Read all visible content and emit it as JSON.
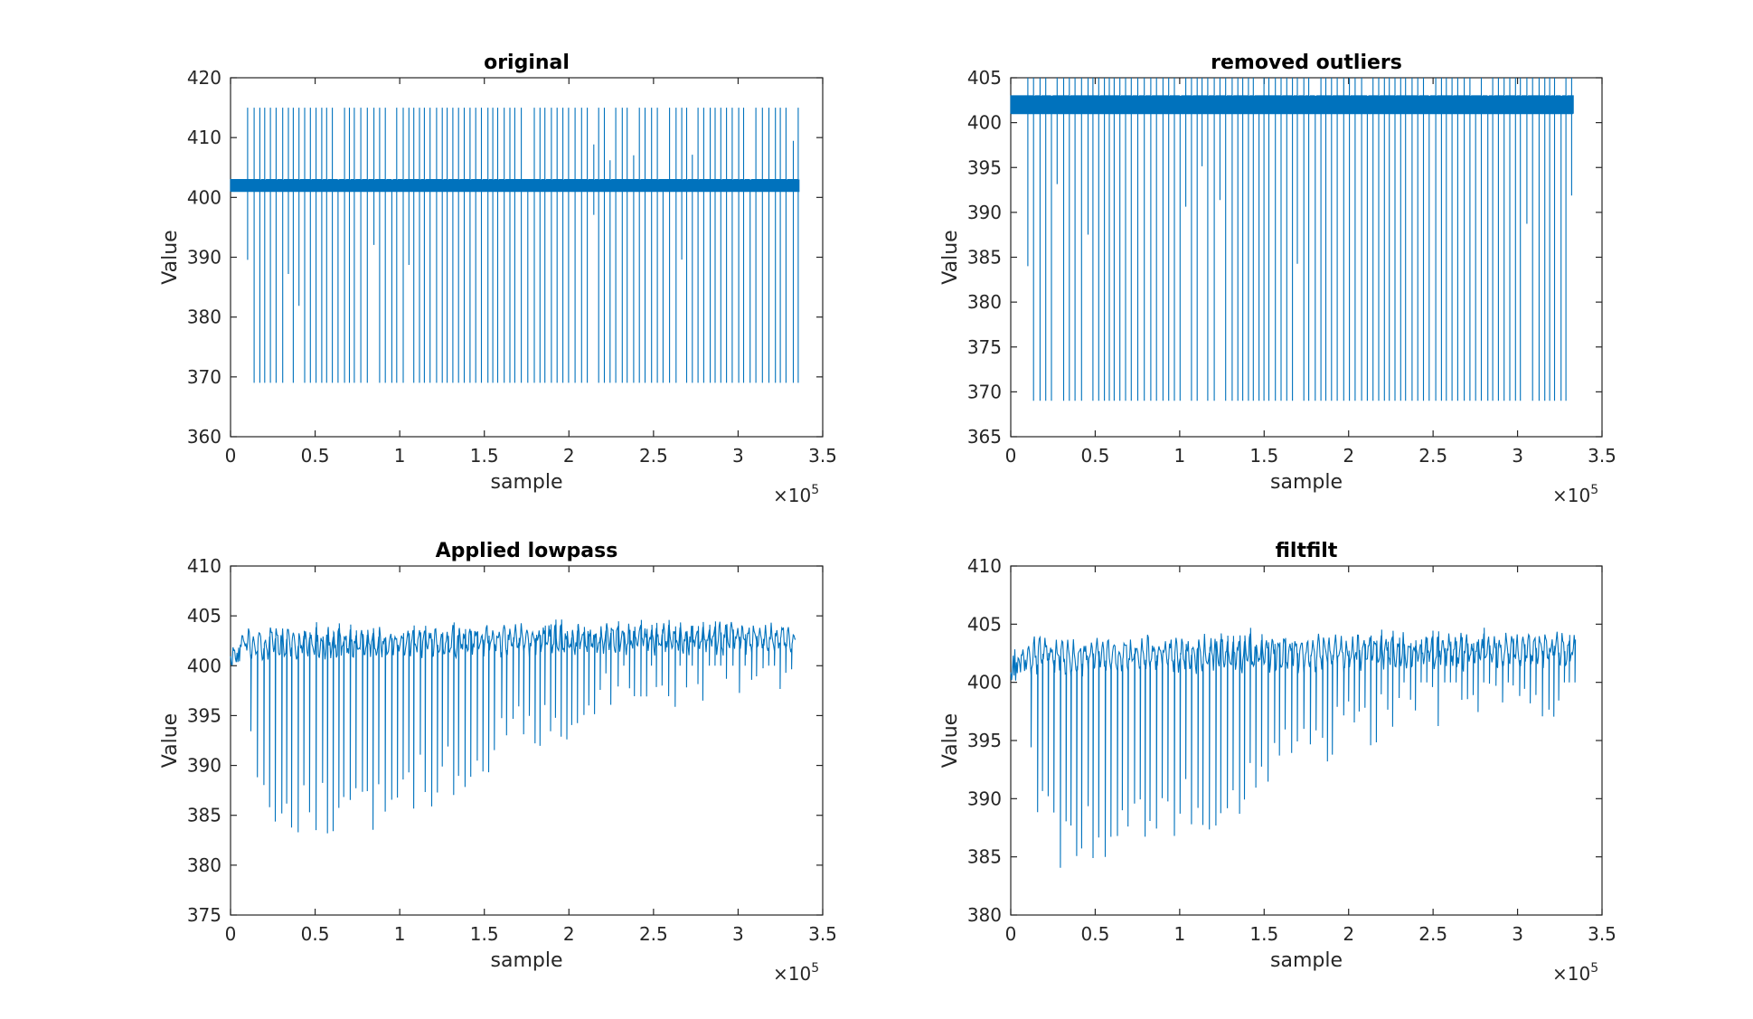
{
  "figure": {
    "background": "#ffffff",
    "axes_color": "#262626",
    "line_color": "#0072BD"
  },
  "chart_data": [
    {
      "type": "line",
      "title": "original",
      "xlabel": "sample",
      "ylabel": "Value",
      "xlim": [
        0,
        3.5
      ],
      "ylim": [
        360,
        420
      ],
      "xticks": [
        "0",
        "0.5",
        "1",
        "1.5",
        "2",
        "2.5",
        "3",
        "3.5"
      ],
      "yticks": [
        "360",
        "370",
        "380",
        "390",
        "400",
        "410",
        "420"
      ],
      "x_exponent": "5",
      "x_multiplier_symbol": "×10",
      "grid": false,
      "series": [
        {
          "color": "#0072BD",
          "x_range": [
            0,
            3.36
          ],
          "baseline": [
            401,
            403
          ],
          "spike_high": 415,
          "spike_low": 369,
          "spike_x_start": 0.1,
          "spike_spacing": 0.034,
          "description_values": {
            "band_low": 401,
            "band_high": 403,
            "max": 415,
            "min": 369
          }
        }
      ]
    },
    {
      "type": "line",
      "title": "removed outliers",
      "xlabel": "sample",
      "ylabel": "Value",
      "xlim": [
        0,
        3.5
      ],
      "ylim": [
        365,
        405
      ],
      "xticks": [
        "0",
        "0.5",
        "1",
        "1.5",
        "2",
        "2.5",
        "3",
        "3.5"
      ],
      "yticks": [
        "365",
        "370",
        "375",
        "380",
        "385",
        "390",
        "395",
        "400",
        "405"
      ],
      "x_exponent": "5",
      "x_multiplier_symbol": "×10",
      "grid": false,
      "series": [
        {
          "color": "#0072BD",
          "x_range": [
            0,
            3.33
          ],
          "baseline": [
            401,
            403
          ],
          "spike_high": 405,
          "spike_low": 369,
          "spike_x_start": 0.1,
          "spike_spacing": 0.034,
          "description_values": {
            "band_low": 401,
            "band_high": 403,
            "max": 405,
            "min": 369
          }
        }
      ]
    },
    {
      "type": "line",
      "title": "Applied lowpass",
      "xlabel": "sample",
      "ylabel": "Value",
      "xlim": [
        0,
        3.5
      ],
      "ylim": [
        375,
        410
      ],
      "xticks": [
        "0",
        "0.5",
        "1",
        "1.5",
        "2",
        "2.5",
        "3",
        "3.5"
      ],
      "yticks": [
        "375",
        "380",
        "385",
        "390",
        "395",
        "400",
        "405",
        "410"
      ],
      "x_exponent": "5",
      "x_multiplier_symbol": "×10",
      "grid": false,
      "series": [
        {
          "color": "#0072BD",
          "x_range": [
            0,
            3.34
          ],
          "baseline": [
            401.2,
            403.2
          ],
          "peak": 405,
          "dip_profile_x": [
            0.1,
            0.3,
            0.5,
            0.8,
            1.0,
            1.2,
            1.5,
            1.8,
            2.0,
            2.2,
            2.6,
            3.0,
            3.34
          ],
          "dip_profile_y": [
            393,
            385,
            385,
            385,
            387,
            388,
            391,
            393,
            395,
            397,
            398,
            399,
            399
          ],
          "description_values": {
            "min": 379.1,
            "max": 405
          }
        }
      ]
    },
    {
      "type": "line",
      "title": "filtfilt",
      "xlabel": "sample",
      "ylabel": "Value",
      "xlim": [
        0,
        3.5
      ],
      "ylim": [
        380,
        410
      ],
      "xticks": [
        "0",
        "0.5",
        "1",
        "1.5",
        "2",
        "2.5",
        "3",
        "3.5"
      ],
      "yticks": [
        "380",
        "385",
        "390",
        "395",
        "400",
        "405",
        "410"
      ],
      "x_exponent": "5",
      "x_multiplier_symbol": "×10",
      "grid": false,
      "series": [
        {
          "color": "#0072BD",
          "x_range": [
            0,
            3.34
          ],
          "baseline": [
            401.2,
            403.2
          ],
          "peak": 405,
          "dip_profile_x": [
            0.1,
            0.3,
            0.5,
            0.8,
            1.0,
            1.2,
            1.5,
            1.8,
            2.0,
            2.2,
            2.6,
            3.0,
            3.34
          ],
          "dip_profile_y": [
            393,
            386,
            386,
            387,
            388,
            389,
            392,
            394,
            395,
            397,
            398,
            399,
            399
          ],
          "description_values": {
            "min": 381,
            "max": 405
          }
        }
      ]
    }
  ]
}
